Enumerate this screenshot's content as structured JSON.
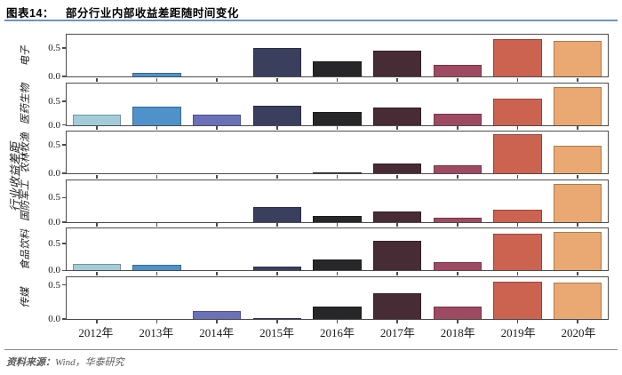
{
  "header": {
    "label": "图表14：",
    "title": "部分行业内部收益差距随时间变化"
  },
  "footer": {
    "label": "资料来源：",
    "text": "Wind，华泰研究"
  },
  "colors": {
    "header_rule": "#6f93bd",
    "panel_border": "#4c4c4c",
    "footer_rule": "#8c8c8c",
    "footer_text": "#595959",
    "text": "#1a1a1a"
  },
  "chart_data": {
    "type": "bar",
    "title": "部分行业内部收益差距随时间变化",
    "subtitle": "",
    "ylabel": "行业收益差距",
    "xlabel": "",
    "layout": "6 vertically stacked subplots sharing the x-axis, one bar per year, each year a fixed color",
    "grid": false,
    "legend": "none",
    "categories": [
      "2012年",
      "2013年",
      "2014年",
      "2015年",
      "2016年",
      "2017年",
      "2018年",
      "2019年",
      "2020年"
    ],
    "yticks": [
      0.0,
      0.5
    ],
    "bar_colors": [
      "#a3ccd9",
      "#4e92c9",
      "#6a71b7",
      "#3b3f5e",
      "#27272a",
      "#472b35",
      "#9f4a63",
      "#cc6351",
      "#eaa973"
    ],
    "panels": [
      {
        "name": "电子",
        "ylim": [
          0,
          0.72
        ],
        "values": [
          0,
          0.07,
          0,
          0.5,
          0.26,
          0.45,
          0.21,
          0.66,
          0.63
        ]
      },
      {
        "name": "医药生物",
        "ylim": [
          0,
          0.86
        ],
        "values": [
          0.21,
          0.39,
          0.22,
          0.41,
          0.28,
          0.37,
          0.23,
          0.55,
          0.79
        ]
      },
      {
        "name": "农林牧渔",
        "ylim": [
          0,
          0.71
        ],
        "values": [
          0,
          0,
          0,
          0,
          0.02,
          0.17,
          0.14,
          0.68,
          0.48
        ]
      },
      {
        "name": "国防军工",
        "ylim": [
          0,
          0.84
        ],
        "values": [
          0,
          0,
          0,
          0.31,
          0.12,
          0.21,
          0.09,
          0.26,
          0.79
        ]
      },
      {
        "name": "食品饮料",
        "ylim": [
          0,
          0.76
        ],
        "values": [
          0.12,
          0.1,
          0,
          0.07,
          0.2,
          0.55,
          0.15,
          0.69,
          0.72
        ]
      },
      {
        "name": "传媒",
        "ylim": [
          0,
          0.6
        ],
        "values": [
          0,
          0,
          0.12,
          0.01,
          0.18,
          0.38,
          0.18,
          0.55,
          0.53
        ]
      }
    ]
  }
}
